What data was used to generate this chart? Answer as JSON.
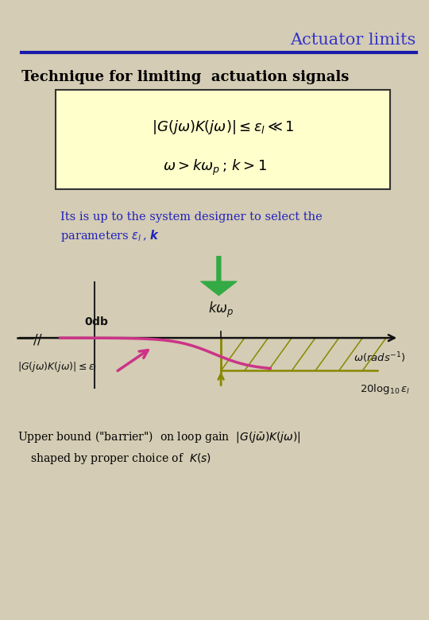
{
  "bg_color": "#d4ccb4",
  "title": "Actuator limits",
  "title_color": "#3333cc",
  "title_fontsize": 15,
  "header_line_color": "#1a1aaa",
  "subtitle": "Technique for limiting  actuation signals",
  "subtitle_color": "#000000",
  "subtitle_fontsize": 13,
  "box_color": "#ffffcc",
  "box_edge_color": "#333333",
  "designer_text_color": "#2222bb",
  "green_arrow_color": "#33aa44",
  "axis_color": "#111111",
  "barrier_color": "#cc3388",
  "hatching_color": "#888800"
}
